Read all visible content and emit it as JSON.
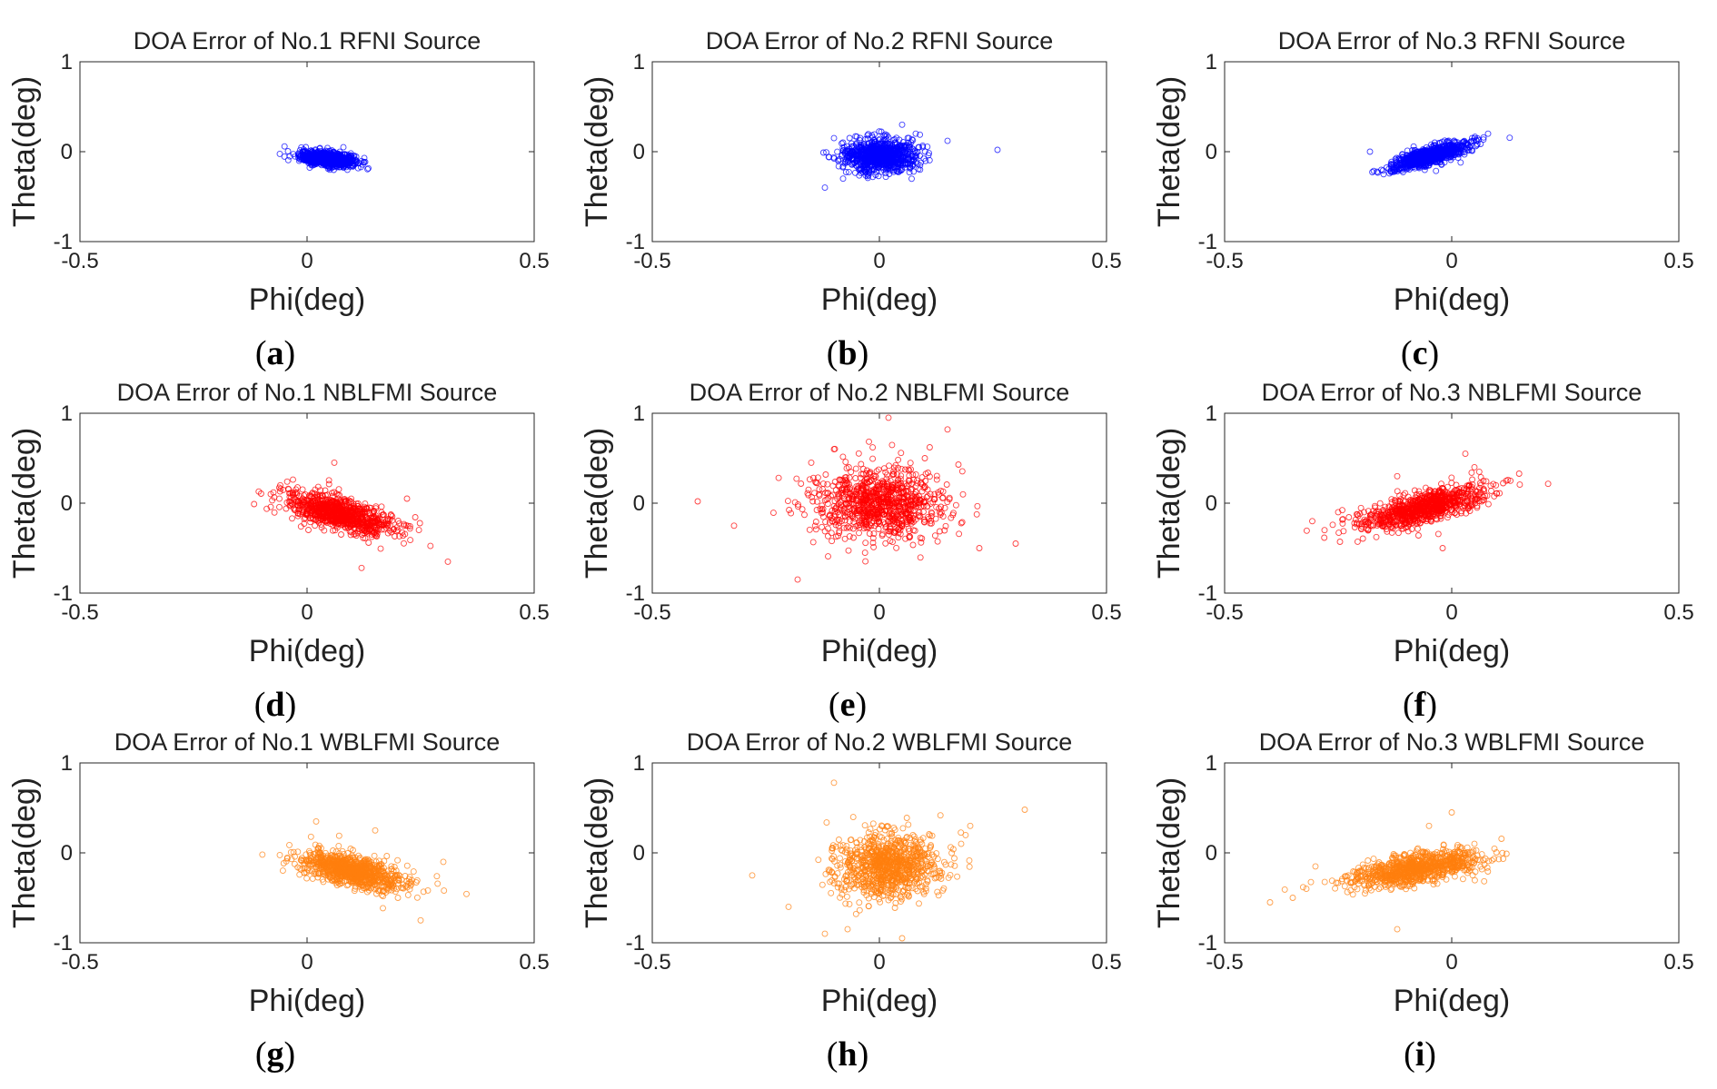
{
  "chart_data": [
    {
      "type": "scatter",
      "panel": "a",
      "title": "DOA Error of No.1 RFNI Source",
      "xlabel": "Phi(deg)",
      "ylabel": "Theta(deg)",
      "xlim": [
        -0.5,
        0.5
      ],
      "ylim": [
        -1,
        1
      ],
      "xticks": [
        "-0.5",
        "0",
        "0.5"
      ],
      "yticks": [
        "1",
        "0",
        "-1"
      ],
      "color": "#0000ff",
      "marker": "open-circle",
      "cluster": {
        "center": [
          0.045,
          -0.08
        ],
        "spread": [
          0.03,
          0.04
        ],
        "correlation": -0.3
      },
      "outliers": [
        [
          0.0,
          -0.08
        ],
        [
          0.1,
          -0.15
        ],
        [
          0.05,
          -0.2
        ],
        [
          0.08,
          0.05
        ]
      ]
    },
    {
      "type": "scatter",
      "panel": "b",
      "title": "DOA Error of No.2 RFNI Source",
      "xlabel": "Phi(deg)",
      "ylabel": "Theta(deg)",
      "xlim": [
        -0.5,
        0.5
      ],
      "ylim": [
        -1,
        1
      ],
      "xticks": [
        "-0.5",
        "0",
        "0.5"
      ],
      "yticks": [
        "1",
        "0",
        "-1"
      ],
      "color": "#0000ff",
      "marker": "open-circle",
      "cluster": {
        "center": [
          0.0,
          -0.04
        ],
        "spread": [
          0.04,
          0.09
        ],
        "correlation": 0.0
      },
      "outliers": [
        [
          0.26,
          0.02
        ],
        [
          -0.12,
          -0.4
        ],
        [
          0.15,
          0.12
        ],
        [
          -0.1,
          0.15
        ],
        [
          0.05,
          0.3
        ],
        [
          -0.08,
          -0.3
        ]
      ]
    },
    {
      "type": "scatter",
      "panel": "c",
      "title": "DOA Error of No.3 RFNI Source",
      "xlabel": "Phi(deg)",
      "ylabel": "Theta(deg)",
      "xlim": [
        -0.5,
        0.5
      ],
      "ylim": [
        -1,
        1
      ],
      "xticks": [
        "-0.5",
        "0",
        "0.5"
      ],
      "yticks": [
        "1",
        "0",
        "-1"
      ],
      "color": "#0000ff",
      "marker": "open-circle",
      "cluster": {
        "center": [
          -0.05,
          -0.05
        ],
        "spread": [
          0.04,
          0.07
        ],
        "correlation": 0.75
      },
      "outliers": [
        [
          -0.18,
          0.0
        ],
        [
          0.08,
          0.2
        ],
        [
          -0.15,
          -0.25
        ],
        [
          0.05,
          0.15
        ]
      ]
    },
    {
      "type": "scatter",
      "panel": "d",
      "title": "DOA Error of No.1 NBLFMI Source",
      "xlabel": "Phi(deg)",
      "ylabel": "Theta(deg)",
      "xlim": [
        -0.5,
        0.5
      ],
      "ylim": [
        -1,
        1
      ],
      "xticks": [
        "-0.5",
        "0",
        "0.5"
      ],
      "yticks": [
        "1",
        "0",
        "-1"
      ],
      "color": "#ff0000",
      "marker": "open-circle",
      "cluster": {
        "center": [
          0.07,
          -0.12
        ],
        "spread": [
          0.06,
          0.12
        ],
        "correlation": -0.65
      },
      "outliers": [
        [
          0.31,
          -0.65
        ],
        [
          0.12,
          -0.72
        ],
        [
          0.06,
          0.45
        ],
        [
          -0.08,
          0.1
        ],
        [
          0.22,
          0.05
        ],
        [
          0.2,
          -0.3
        ]
      ]
    },
    {
      "type": "scatter",
      "panel": "e",
      "title": "DOA Error of No.2 NBLFMI Source",
      "xlabel": "Phi(deg)",
      "ylabel": "Theta(deg)",
      "xlim": [
        -0.5,
        0.5
      ],
      "ylim": [
        -1,
        1
      ],
      "xticks": [
        "-0.5",
        "0",
        "0.5"
      ],
      "yticks": [
        "1",
        "0",
        "-1"
      ],
      "color": "#ff0000",
      "marker": "open-circle",
      "cluster": {
        "center": [
          0.0,
          0.0
        ],
        "spread": [
          0.07,
          0.2
        ],
        "correlation": 0.0
      },
      "outliers": [
        [
          -0.4,
          0.02
        ],
        [
          -0.32,
          -0.25
        ],
        [
          -0.18,
          -0.85
        ],
        [
          0.3,
          -0.45
        ],
        [
          0.02,
          0.95
        ],
        [
          0.15,
          0.82
        ],
        [
          -0.15,
          0.45
        ],
        [
          0.22,
          -0.5
        ],
        [
          -0.1,
          0.6
        ],
        [
          0.1,
          0.5
        ]
      ]
    },
    {
      "type": "scatter",
      "panel": "f",
      "title": "DOA Error of No.3 NBLFMI Source",
      "xlabel": "Phi(deg)",
      "ylabel": "Theta(deg)",
      "xlim": [
        -0.5,
        0.5
      ],
      "ylim": [
        -1,
        1
      ],
      "xticks": [
        "-0.5",
        "0",
        "0.5"
      ],
      "yticks": [
        "1",
        "0",
        "-1"
      ],
      "color": "#ff0000",
      "marker": "open-circle",
      "cluster": {
        "center": [
          -0.06,
          -0.05
        ],
        "spread": [
          0.07,
          0.12
        ],
        "correlation": 0.7
      },
      "outliers": [
        [
          -0.28,
          -0.3
        ],
        [
          -0.25,
          -0.1
        ],
        [
          0.12,
          0.25
        ],
        [
          0.03,
          0.55
        ],
        [
          0.05,
          0.4
        ],
        [
          -0.02,
          -0.5
        ],
        [
          -0.12,
          0.3
        ]
      ]
    },
    {
      "type": "scatter",
      "panel": "g",
      "title": "DOA Error of No.1 WBLFMI Source",
      "xlabel": "Phi(deg)",
      "ylabel": "Theta(deg)",
      "xlim": [
        -0.5,
        0.5
      ],
      "ylim": [
        -1,
        1
      ],
      "xticks": [
        "-0.5",
        "0",
        "0.5"
      ],
      "yticks": [
        "1",
        "0",
        "-1"
      ],
      "color": "#ff7f0e",
      "marker": "open-circle",
      "cluster": {
        "center": [
          0.1,
          -0.2
        ],
        "spread": [
          0.06,
          0.11
        ],
        "correlation": -0.6
      },
      "outliers": [
        [
          0.3,
          -0.1
        ],
        [
          0.25,
          -0.75
        ],
        [
          0.02,
          0.35
        ],
        [
          0.15,
          0.25
        ],
        [
          0.0,
          -0.1
        ],
        [
          0.2,
          -0.5
        ]
      ]
    },
    {
      "type": "scatter",
      "panel": "h",
      "title": "DOA Error of No.2 WBLFMI Source",
      "xlabel": "Phi(deg)",
      "ylabel": "Theta(deg)",
      "xlim": [
        -0.5,
        0.5
      ],
      "ylim": [
        -1,
        1
      ],
      "xticks": [
        "-0.5",
        "0",
        "0.5"
      ],
      "yticks": [
        "1",
        "0",
        "-1"
      ],
      "color": "#ff7f0e",
      "marker": "open-circle",
      "cluster": {
        "center": [
          0.02,
          -0.15
        ],
        "spread": [
          0.06,
          0.18
        ],
        "correlation": 0.1
      },
      "outliers": [
        [
          -0.28,
          -0.25
        ],
        [
          -0.2,
          -0.6
        ],
        [
          -0.1,
          0.78
        ],
        [
          0.32,
          0.48
        ],
        [
          -0.12,
          -0.9
        ],
        [
          0.2,
          0.3
        ],
        [
          -0.07,
          -0.85
        ],
        [
          0.05,
          -0.95
        ],
        [
          0.18,
          0.1
        ]
      ]
    },
    {
      "type": "scatter",
      "panel": "i",
      "title": "DOA Error of No.3 WBLFMI Source",
      "xlabel": "Phi(deg)",
      "ylabel": "Theta(deg)",
      "xlim": [
        -0.5,
        0.5
      ],
      "ylim": [
        -1,
        1
      ],
      "xticks": [
        "-0.5",
        "0",
        "0.5"
      ],
      "yticks": [
        "1",
        "0",
        "-1"
      ],
      "color": "#ff7f0e",
      "marker": "open-circle",
      "cluster": {
        "center": [
          -0.08,
          -0.18
        ],
        "spread": [
          0.07,
          0.1
        ],
        "correlation": 0.55
      },
      "outliers": [
        [
          -0.4,
          -0.55
        ],
        [
          -0.35,
          -0.5
        ],
        [
          -0.32,
          -0.4
        ],
        [
          -0.12,
          -0.85
        ],
        [
          0.0,
          0.45
        ],
        [
          0.05,
          0.1
        ],
        [
          -0.3,
          -0.15
        ],
        [
          -0.05,
          0.3
        ]
      ]
    }
  ]
}
